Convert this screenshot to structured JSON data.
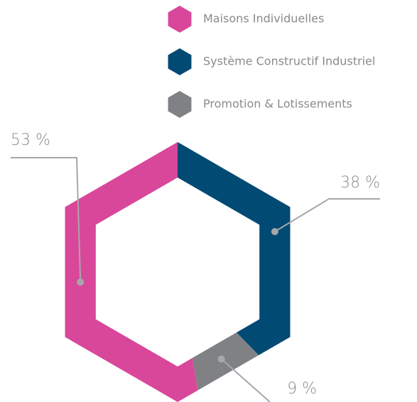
{
  "chart_data": {
    "type": "donut",
    "categories": [
      "Maisons Individuelles",
      "Système Constructif Industriel",
      "Promotion & Lotissements"
    ],
    "values": [
      53,
      38,
      9
    ],
    "value_labels": [
      "53 %",
      "38 %",
      "9 %"
    ],
    "colors": [
      "#d9479b",
      "#004a73",
      "#808184"
    ],
    "legend": "top-right"
  }
}
